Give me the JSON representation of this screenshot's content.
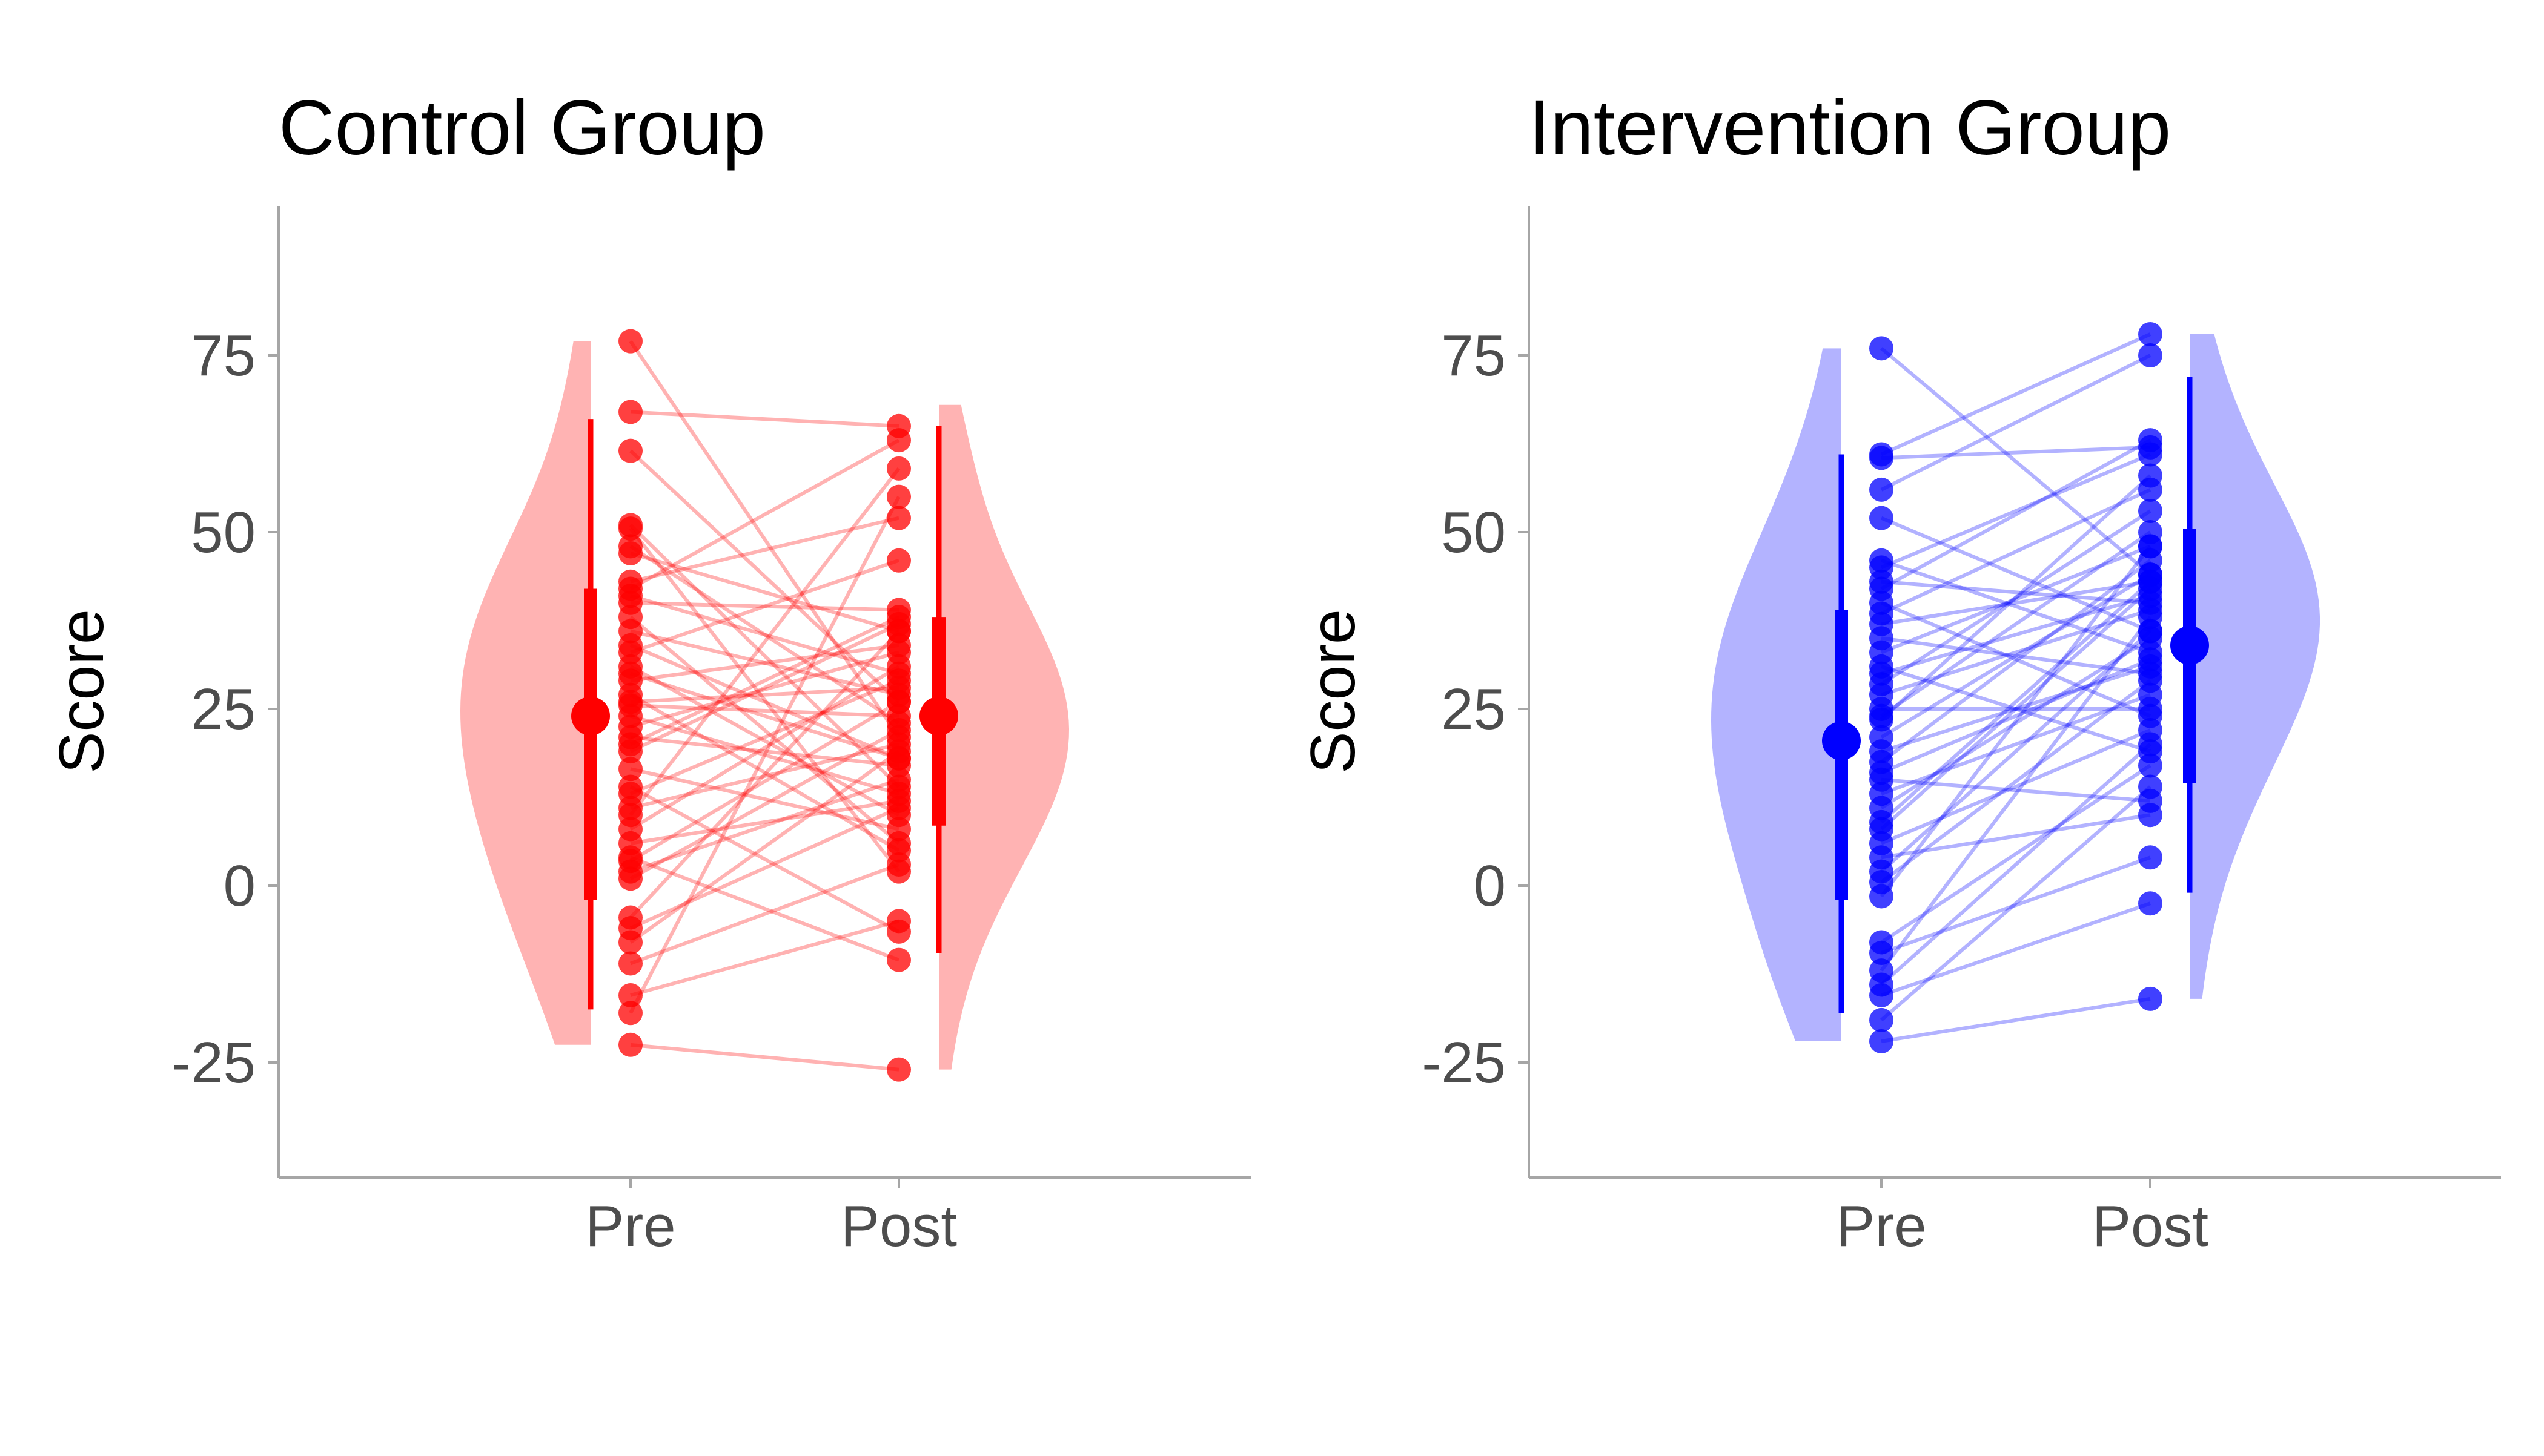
{
  "chart_data": [
    {
      "type": "violin",
      "title": "Control Group",
      "ylabel": "Score",
      "categories": [
        "Pre",
        "Post"
      ],
      "yticks": [
        -25,
        0,
        25,
        50,
        75
      ],
      "ylim": [
        -41,
        96
      ],
      "color": "#ff0000",
      "violin_color": "#ffb3b3",
      "violin_extent": {
        "Pre": [
          -22.5,
          77
        ],
        "Post": [
          -26,
          68
        ]
      },
      "summary": {
        "Pre": {
          "median": 24,
          "q1": -2,
          "q3": 42,
          "min": -17.5,
          "max": 66
        },
        "Post": {
          "median": 24,
          "q1": 8.5,
          "q3": 38,
          "min": -9.5,
          "max": 65
        }
      },
      "pairs": [
        [
          77,
          21
        ],
        [
          67,
          65
        ],
        [
          61.5,
          26
        ],
        [
          51,
          14
        ],
        [
          50.5,
          2
        ],
        [
          47,
          36
        ],
        [
          43,
          52
        ],
        [
          42,
          63
        ],
        [
          41,
          30
        ],
        [
          40,
          39
        ],
        [
          36,
          27
        ],
        [
          34,
          18
        ],
        [
          33,
          46
        ],
        [
          31,
          10
        ],
        [
          29,
          34
        ],
        [
          27,
          5
        ],
        [
          25.5,
          24
        ],
        [
          24,
          13
        ],
        [
          22.5,
          33
        ],
        [
          21,
          17
        ],
        [
          19,
          37
        ],
        [
          16.5,
          8
        ],
        [
          13,
          29
        ],
        [
          11,
          20
        ],
        [
          10,
          59
        ],
        [
          8,
          31
        ],
        [
          6,
          12
        ],
        [
          3.5,
          26
        ],
        [
          2,
          15
        ],
        [
          1,
          22
        ],
        [
          -4.5,
          36
        ],
        [
          -6,
          11
        ],
        [
          -8,
          19
        ],
        [
          -11,
          3
        ],
        [
          -15.5,
          -5
        ],
        [
          -18,
          55
        ],
        [
          -22.5,
          -26
        ],
        [
          48,
          23
        ],
        [
          38,
          6
        ],
        [
          30,
          18
        ],
        [
          26,
          28
        ],
        [
          20,
          38
        ],
        [
          14,
          -6.5
        ],
        [
          4,
          -10.5
        ]
      ]
    },
    {
      "type": "violin",
      "title": "Intervention Group",
      "ylabel": "Score",
      "categories": [
        "Pre",
        "Post"
      ],
      "yticks": [
        -25,
        0,
        25,
        50,
        75
      ],
      "ylim": [
        -41,
        96
      ],
      "color": "#0000ff",
      "violin_color": "#b3b3ff",
      "violin_extent": {
        "Pre": [
          -22,
          76
        ],
        "Post": [
          -16,
          78
        ]
      },
      "summary": {
        "Pre": {
          "median": 20.5,
          "q1": -2,
          "q3": 39,
          "min": -18,
          "max": 61
        },
        "Post": {
          "median": 34,
          "q1": 14.5,
          "q3": 50.5,
          "min": -1,
          "max": 72
        }
      },
      "pairs": [
        [
          76,
          44
        ],
        [
          61,
          78
        ],
        [
          60.5,
          62
        ],
        [
          56,
          75
        ],
        [
          52,
          36
        ],
        [
          46,
          33
        ],
        [
          45,
          61
        ],
        [
          43,
          40
        ],
        [
          40,
          24
        ],
        [
          38.5,
          56
        ],
        [
          37,
          43
        ],
        [
          35,
          30
        ],
        [
          33,
          48
        ],
        [
          31,
          19
        ],
        [
          28.5,
          53
        ],
        [
          27,
          39
        ],
        [
          25,
          25
        ],
        [
          23.5,
          58
        ],
        [
          21,
          44
        ],
        [
          19,
          31
        ],
        [
          17.5,
          46
        ],
        [
          15,
          12
        ],
        [
          13,
          27
        ],
        [
          11,
          35
        ],
        [
          8,
          42
        ],
        [
          6,
          22
        ],
        [
          4,
          10
        ],
        [
          2,
          36
        ],
        [
          0.5,
          29
        ],
        [
          -1.5,
          48
        ],
        [
          -8,
          17
        ],
        [
          -9.5,
          4
        ],
        [
          -12,
          38
        ],
        [
          -14,
          20
        ],
        [
          -15.5,
          -2.5
        ],
        [
          -19,
          14
        ],
        [
          -22,
          -16
        ],
        [
          42,
          63
        ],
        [
          30,
          41
        ],
        [
          24,
          50
        ],
        [
          16,
          32
        ],
        [
          9,
          43
        ]
      ]
    }
  ]
}
